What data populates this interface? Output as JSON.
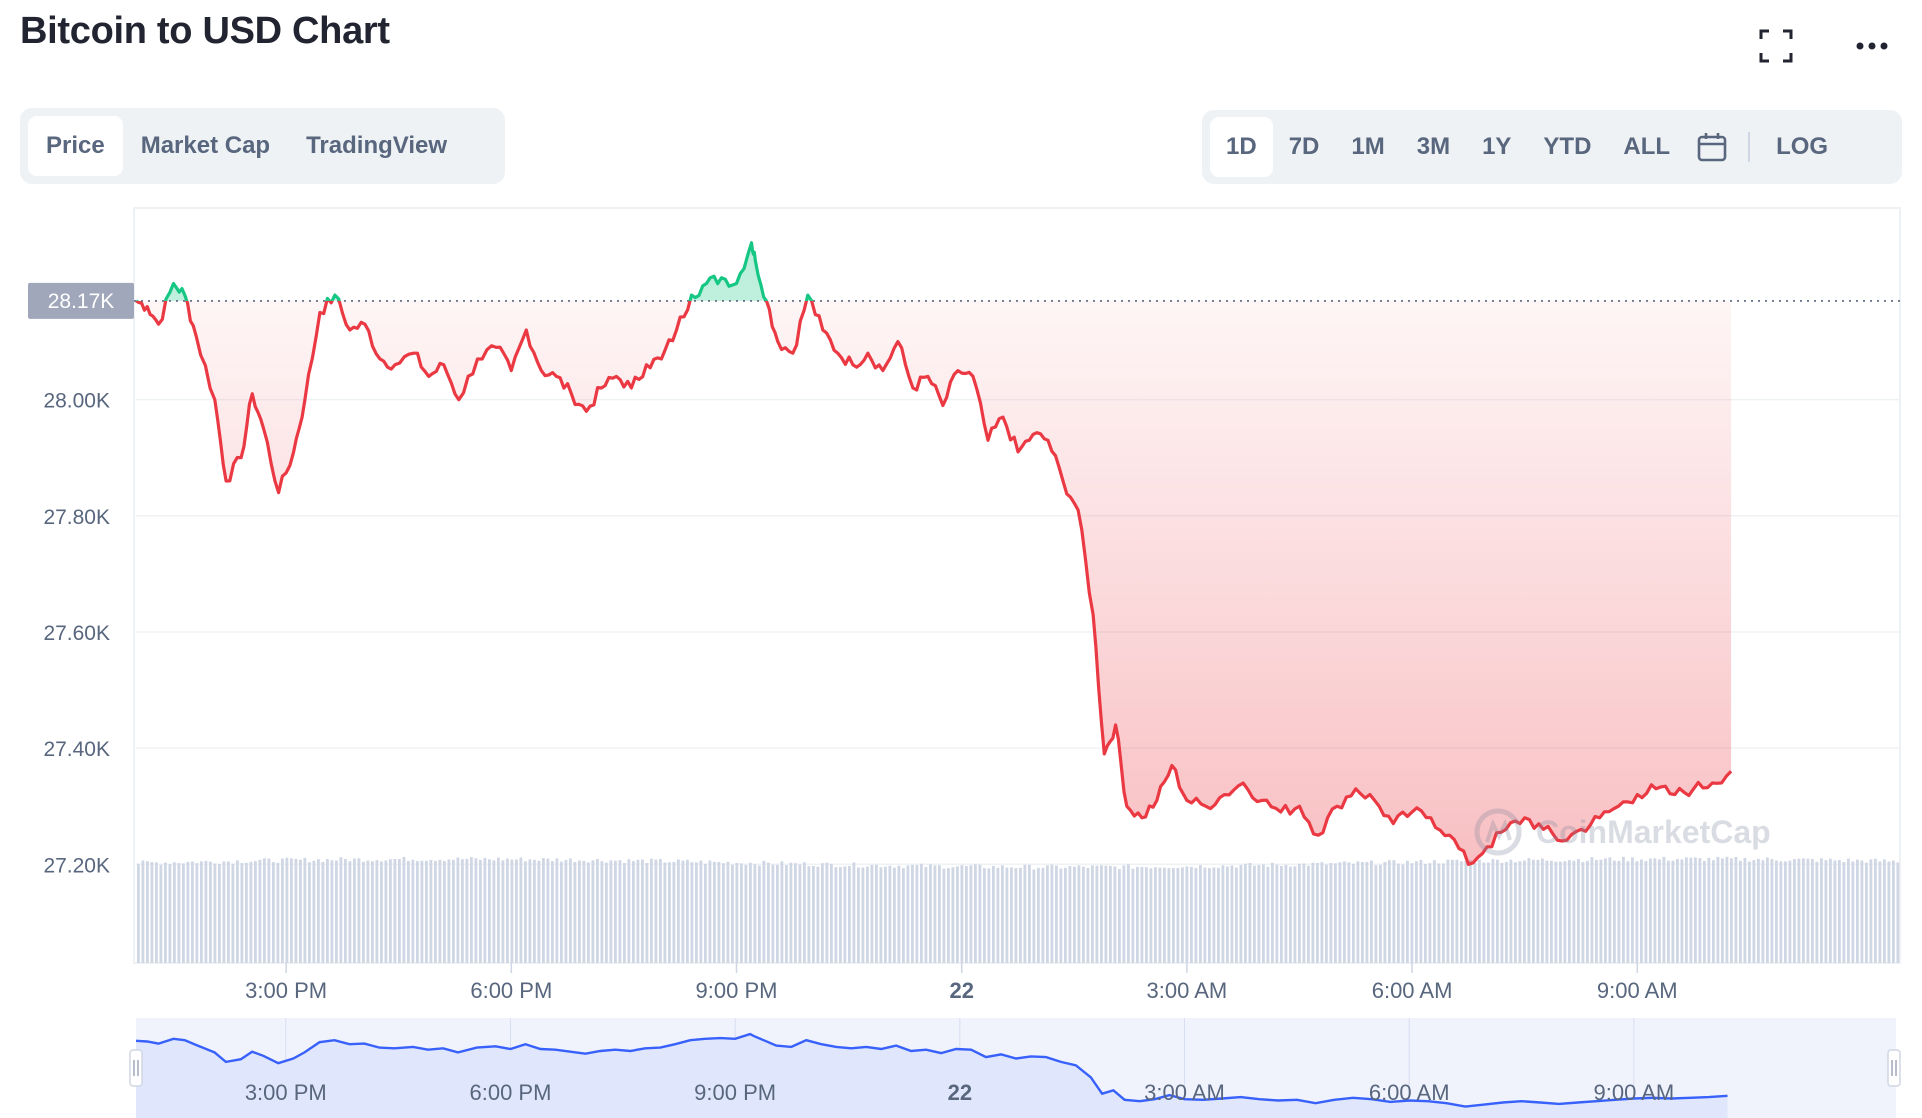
{
  "header": {
    "title": "Bitcoin to USD Chart",
    "fullscreen_icon": "expand-icon",
    "more_icon": "more-horizontal-icon"
  },
  "view_tabs": [
    {
      "label": "Price",
      "active": true
    },
    {
      "label": "Market Cap",
      "active": false
    },
    {
      "label": "TradingView",
      "active": false
    }
  ],
  "ranges": [
    {
      "label": "1D",
      "active": true
    },
    {
      "label": "7D",
      "active": false
    },
    {
      "label": "1M",
      "active": false
    },
    {
      "label": "3M",
      "active": false
    },
    {
      "label": "1Y",
      "active": false
    },
    {
      "label": "YTD",
      "active": false
    },
    {
      "label": "ALL",
      "active": false
    }
  ],
  "calendar_icon": "calendar-icon",
  "log_label": "LOG",
  "watermark": "CoinMarketCap",
  "colors": {
    "up": "#16c784",
    "down": "#ea3943",
    "volume": "#cfd6e4",
    "navigator_line": "#3861fb",
    "navigator_fill": "#e8edfd",
    "badge": "#a1a7bb"
  },
  "chart_data": {
    "type": "line",
    "x_ticks": [
      "3:00 PM",
      "6:00 PM",
      "9:00 PM",
      "22",
      "3:00 AM",
      "6:00 AM",
      "9:00 AM"
    ],
    "x_tick_bold": [
      "22"
    ],
    "x_tick_hours": [
      3,
      6,
      9,
      12,
      15,
      18,
      21
    ],
    "y_ticks": [
      "28.00K",
      "27.80K",
      "27.60K",
      "27.40K",
      "27.20K"
    ],
    "y_tick_values": [
      28000,
      27800,
      27600,
      27400,
      27200
    ],
    "ylim": [
      27030,
      28330
    ],
    "x_range_hours": [
      1,
      24.5
    ],
    "reference_value": 28170,
    "reference_label": "28.17K",
    "keypoints": [
      [
        1.0,
        28170
      ],
      [
        1.15,
        28160
      ],
      [
        1.3,
        28130
      ],
      [
        1.5,
        28200
      ],
      [
        1.65,
        28180
      ],
      [
        1.8,
        28110
      ],
      [
        2.05,
        28000
      ],
      [
        2.2,
        27860
      ],
      [
        2.4,
        27900
      ],
      [
        2.55,
        28010
      ],
      [
        2.7,
        27950
      ],
      [
        2.9,
        27840
      ],
      [
        3.1,
        27910
      ],
      [
        3.25,
        28000
      ],
      [
        3.45,
        28150
      ],
      [
        3.65,
        28180
      ],
      [
        3.85,
        28120
      ],
      [
        4.05,
        28130
      ],
      [
        4.25,
        28070
      ],
      [
        4.45,
        28060
      ],
      [
        4.7,
        28080
      ],
      [
        4.9,
        28040
      ],
      [
        5.1,
        28060
      ],
      [
        5.3,
        28000
      ],
      [
        5.55,
        28070
      ],
      [
        5.8,
        28090
      ],
      [
        6.0,
        28050
      ],
      [
        6.2,
        28120
      ],
      [
        6.4,
        28050
      ],
      [
        6.6,
        28040
      ],
      [
        6.8,
        28010
      ],
      [
        7.0,
        27980
      ],
      [
        7.2,
        28020
      ],
      [
        7.4,
        28040
      ],
      [
        7.6,
        28020
      ],
      [
        7.8,
        28060
      ],
      [
        8.0,
        28070
      ],
      [
        8.2,
        28120
      ],
      [
        8.4,
        28180
      ],
      [
        8.6,
        28200
      ],
      [
        8.8,
        28210
      ],
      [
        9.0,
        28200
      ],
      [
        9.2,
        28270
      ],
      [
        9.25,
        28240
      ],
      [
        9.4,
        28170
      ],
      [
        9.55,
        28100
      ],
      [
        9.75,
        28080
      ],
      [
        9.95,
        28180
      ],
      [
        10.15,
        28120
      ],
      [
        10.35,
        28080
      ],
      [
        10.55,
        28060
      ],
      [
        10.75,
        28080
      ],
      [
        10.95,
        28050
      ],
      [
        11.15,
        28100
      ],
      [
        11.35,
        28020
      ],
      [
        11.55,
        28040
      ],
      [
        11.75,
        27990
      ],
      [
        11.95,
        28050
      ],
      [
        12.15,
        28040
      ],
      [
        12.35,
        27930
      ],
      [
        12.55,
        27970
      ],
      [
        12.75,
        27910
      ],
      [
        12.95,
        27940
      ],
      [
        13.15,
        27930
      ],
      [
        13.35,
        27860
      ],
      [
        13.55,
        27810
      ],
      [
        13.75,
        27630
      ],
      [
        13.9,
        27390
      ],
      [
        14.05,
        27440
      ],
      [
        14.2,
        27300
      ],
      [
        14.4,
        27280
      ],
      [
        14.6,
        27310
      ],
      [
        14.8,
        27370
      ],
      [
        15.0,
        27310
      ],
      [
        15.25,
        27300
      ],
      [
        15.5,
        27320
      ],
      [
        15.75,
        27340
      ],
      [
        16.0,
        27310
      ],
      [
        16.25,
        27290
      ],
      [
        16.5,
        27300
      ],
      [
        16.75,
        27250
      ],
      [
        17.0,
        27300
      ],
      [
        17.25,
        27330
      ],
      [
        17.5,
        27310
      ],
      [
        17.75,
        27270
      ],
      [
        18.0,
        27290
      ],
      [
        18.25,
        27280
      ],
      [
        18.5,
        27250
      ],
      [
        18.75,
        27200
      ],
      [
        19.0,
        27230
      ],
      [
        19.25,
        27260
      ],
      [
        19.5,
        27280
      ],
      [
        19.75,
        27260
      ],
      [
        20.0,
        27240
      ],
      [
        20.25,
        27260
      ],
      [
        20.5,
        27280
      ],
      [
        20.75,
        27300
      ],
      [
        21.0,
        27320
      ],
      [
        21.25,
        27330
      ],
      [
        21.5,
        27320
      ],
      [
        21.75,
        27330
      ],
      [
        22.0,
        27340
      ],
      [
        22.25,
        27360
      ]
    ]
  }
}
